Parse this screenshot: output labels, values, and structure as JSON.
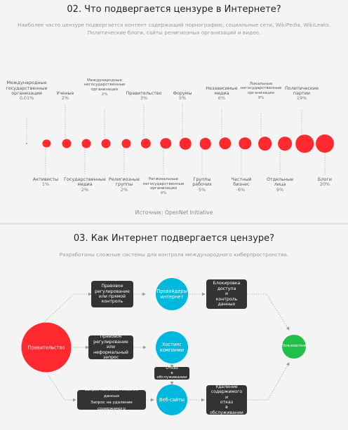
{
  "section1": {
    "title": "02. Что подвергается цензуре в Интернете?",
    "subtitle_line1": "Наиболее часто цензуре подвергается контент содержащий порнографию, социальные сети, WikiPedia, WikiLeaks.",
    "subtitle_line2": "Политические блоги, сайты религиозных организаций и видео.",
    "source": "Источник: OpenNet Initiative",
    "top_items": [
      {
        "lines": [
          "Международные",
          "государственные",
          "организации"
        ],
        "pct": "0,01%"
      },
      {
        "lines": [
          "Ученые"
        ],
        "pct": "2%"
      },
      {
        "lines": [
          "Международные",
          "негосударственные",
          "организации"
        ],
        "pct": "2%"
      },
      {
        "lines": [
          "Правительство"
        ],
        "pct": "3%"
      },
      {
        "lines": [
          "Форумы"
        ],
        "pct": "5%"
      },
      {
        "lines": [
          "Независимые",
          "медиа"
        ],
        "pct": "6%"
      },
      {
        "lines": [
          "Локальные",
          "негосударственные",
          "организации"
        ],
        "pct": "9%"
      },
      {
        "lines": [
          "Политические",
          "партии"
        ],
        "pct": "19%"
      }
    ],
    "bottom_items": [
      {
        "lines": [
          "Активисты"
        ],
        "pct": "1%"
      },
      {
        "lines": [
          "Государственные",
          "медиа"
        ],
        "pct": "2%"
      },
      {
        "lines": [
          "Религиозные",
          "группы"
        ],
        "pct": "2%"
      },
      {
        "lines": [
          "Региональные",
          "негосударственные",
          "организации"
        ],
        "pct": "4%"
      },
      {
        "lines": [
          "Группы",
          "рабочих"
        ],
        "pct": "5%"
      },
      {
        "lines": [
          "Частный",
          "бизнес"
        ],
        "pct": "6%"
      },
      {
        "lines": [
          "Отдельные",
          "лица"
        ],
        "pct": "9%"
      },
      {
        "lines": [
          "Блоги"
        ],
        "pct": "20%"
      }
    ],
    "dot_values": [
      0.01,
      1,
      2,
      2,
      2,
      2,
      3,
      4,
      5,
      5,
      6,
      6,
      9,
      9,
      19,
      20
    ],
    "dot_color": "#ff2a2f"
  },
  "section2": {
    "title": "03. Как Интернет подвергается цензуре?",
    "subtitle": "Разработаны сложные системы для контроля международного киберпространства.",
    "government": "Правительство",
    "users": "Пользователи",
    "providers": [
      "Провайдеры",
      "интернет"
    ],
    "hosting": [
      "Хостинг",
      "компании"
    ],
    "websites": "Веб-сайты",
    "box_legal": [
      "Правовое",
      "регулирование",
      "или прямой",
      "контроль"
    ],
    "box_informal": [
      "Правовое",
      "регулирование",
      "или неформальный",
      "запрос"
    ],
    "box_requests": [
      "Запрос пользовательских данных",
      "Запрос на удаление содержимого"
    ],
    "box_block": [
      "Блокировка",
      "доступа",
      "и",
      "контроль",
      "данных"
    ],
    "box_refusal": [
      "Отказ",
      "в обслуживании"
    ],
    "box_removal": [
      "Удаление",
      "содержимого",
      "и",
      "отказ",
      "в обслуживании"
    ],
    "colors": {
      "government": "#ff2a2f",
      "node": "#00b7de",
      "users": "#1fbf4a",
      "box": "#333333"
    }
  }
}
